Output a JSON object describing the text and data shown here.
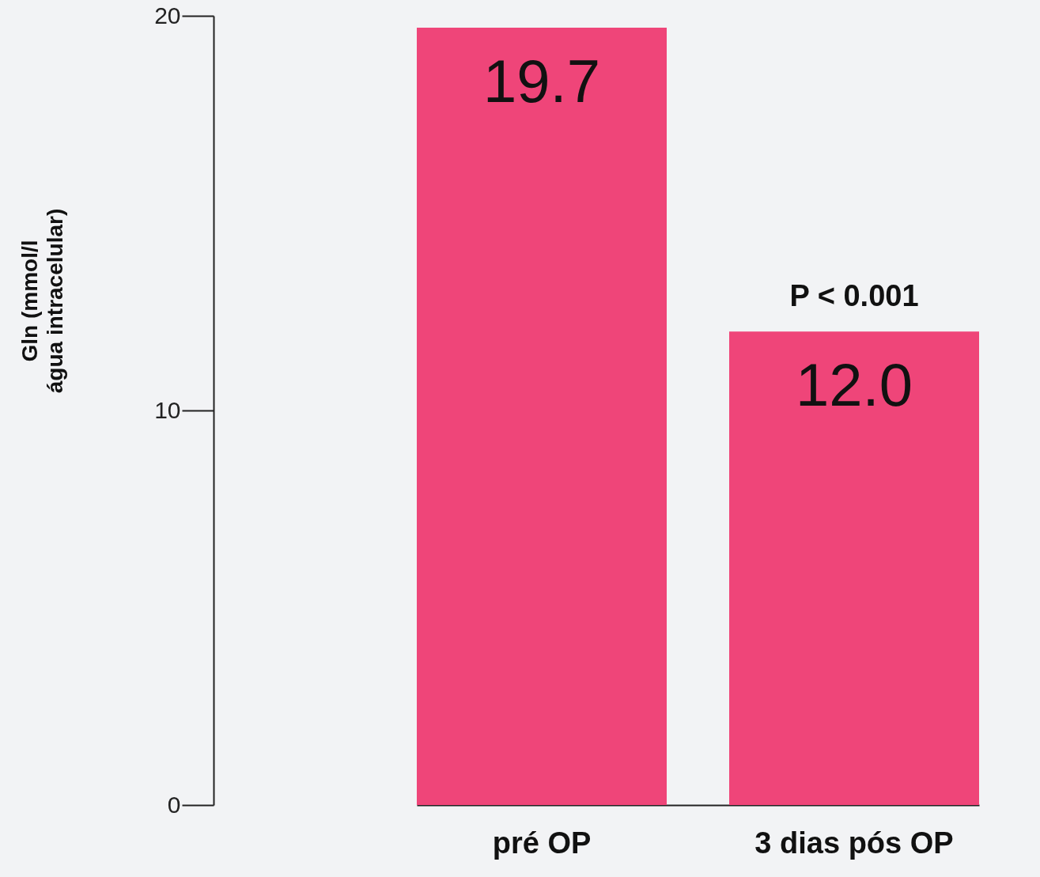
{
  "chart_data": {
    "type": "bar",
    "ylabel": "Gln (mmol/l\nágua intracelular)",
    "categories": [
      "pré OP",
      "3 dias pós OP"
    ],
    "values": [
      19.7,
      12.0
    ],
    "value_labels": [
      "19.7",
      "12.0"
    ],
    "color": "#ef4579",
    "ylim": [
      0,
      20
    ],
    "yticks": [
      0,
      10,
      20
    ],
    "grid": false,
    "annotations": [
      {
        "text": "P <  0.001",
        "x": "3 dias pós OP",
        "y": 12.0
      }
    ]
  }
}
